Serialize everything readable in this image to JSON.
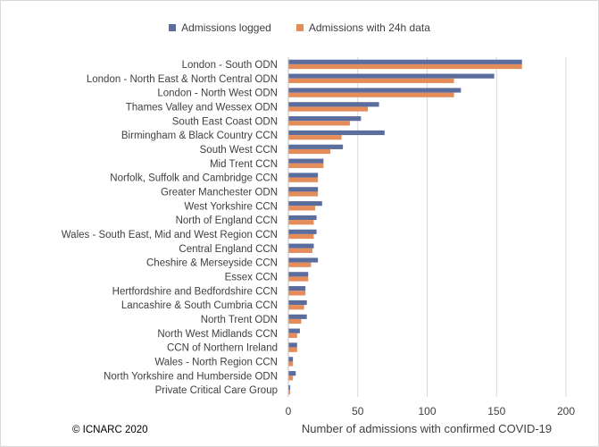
{
  "chart_data": {
    "type": "bar",
    "orientation": "horizontal",
    "categories": [
      "London - South ODN",
      "London - North East & North Central ODN",
      "London - North West ODN",
      "Thames Valley and Wessex ODN",
      "South East Coast ODN",
      "Birmingham & Black Country CCN",
      "South West CCN",
      "Mid Trent CCN",
      "Norfolk, Suffolk and Cambridge CCN",
      "Greater Manchester ODN",
      "West Yorkshire CCN",
      "North of England CCN",
      "Wales - South East, Mid and West Region CCN",
      "Central England CCN",
      "Cheshire & Merseyside CCN",
      "Essex CCN",
      "Hertfordshire and Bedfordshire CCN",
      "Lancashire & South Cumbria CCN",
      "North Trent ODN",
      "North West Midlands CCN",
      "CCN of Northern Ireland",
      "Wales - North Region CCN",
      "North Yorkshire and Humberside ODN",
      "Private Critical Care Group"
    ],
    "series": [
      {
        "name": "Admissions logged",
        "color": "#5b6d9c",
        "values": [
          168,
          148,
          124,
          65,
          52,
          69,
          39,
          25,
          21,
          21,
          24,
          20,
          20,
          18,
          21,
          14,
          12,
          13,
          13,
          8,
          6,
          3,
          5,
          1
        ]
      },
      {
        "name": "Admissions with 24h data",
        "color": "#e48c5a",
        "values": [
          168,
          119,
          119,
          57,
          44,
          38,
          30,
          25,
          21,
          21,
          19,
          18,
          18,
          17,
          16,
          14,
          12,
          11,
          9,
          6,
          6,
          3,
          3,
          1
        ]
      }
    ],
    "xlim": [
      0,
      200
    ],
    "xticks": [
      "0",
      "50",
      "100",
      "150",
      "200"
    ],
    "xlabel": "Number of admissions with confirmed COVID-19",
    "ylabel": "",
    "title": "",
    "grid": true,
    "legend_position": "top"
  },
  "footer": {
    "copyright": "© ICNARC 2020"
  }
}
